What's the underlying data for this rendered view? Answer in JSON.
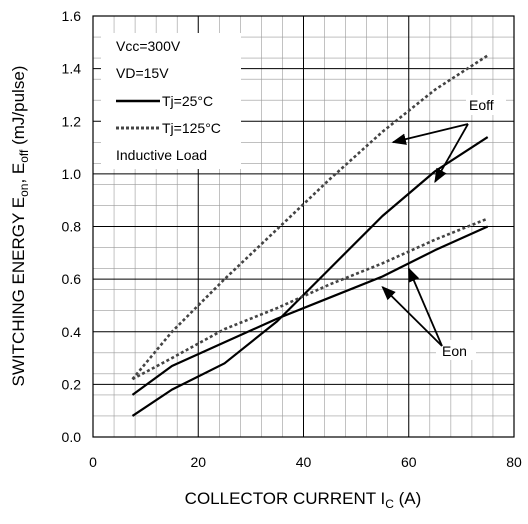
{
  "chart_data": {
    "type": "line",
    "xlabel": {
      "main": "COLLECTOR CURRENT I",
      "sub": "C",
      "tail": " (A)"
    },
    "ylabel": {
      "p1": "SWITCHING ENERGY E",
      "s1": "on",
      "p2": ", E",
      "s2": "off",
      "p3": " (mJ/pulse)"
    },
    "xlim": [
      0,
      80
    ],
    "ylim": [
      0,
      1.6
    ],
    "x_ticks": [
      0,
      20,
      40,
      60,
      80
    ],
    "y_ticks": [
      0.0,
      0.2,
      0.4,
      0.6,
      0.8,
      1.0,
      1.2,
      1.4,
      1.6
    ],
    "x_tick_labels": [
      "0",
      "20",
      "40",
      "60",
      "80"
    ],
    "y_tick_labels": [
      "0.0",
      "0.2",
      "0.4",
      "0.6",
      "0.8",
      "1.0",
      "1.2",
      "1.4",
      "1.6"
    ],
    "grid": true,
    "conditions": [
      "Vcc=300V",
      "VD=15V"
    ],
    "legend_note": "Inductive Load",
    "series": [
      {
        "name": "Tj=25°C",
        "quantity": "Eoff",
        "style": "solid",
        "color": "#000000",
        "x": [
          7.5,
          15,
          25,
          35,
          45,
          55,
          65,
          75
        ],
        "y": [
          0.08,
          0.18,
          0.28,
          0.44,
          0.64,
          0.84,
          1.01,
          1.14
        ]
      },
      {
        "name": "Tj=25°C",
        "quantity": "Eon",
        "style": "solid",
        "color": "#000000",
        "x": [
          7.5,
          15,
          25,
          35,
          45,
          55,
          65,
          75
        ],
        "y": [
          0.16,
          0.27,
          0.36,
          0.45,
          0.53,
          0.61,
          0.71,
          0.8
        ]
      },
      {
        "name": "Tj=125°C",
        "quantity": "Eoff",
        "style": "dotted",
        "color": "#444444",
        "x": [
          7.5,
          15,
          25,
          35,
          45,
          55,
          65,
          75
        ],
        "y": [
          0.22,
          0.4,
          0.6,
          0.79,
          0.98,
          1.16,
          1.32,
          1.45
        ]
      },
      {
        "name": "Tj=125°C",
        "quantity": "Eon",
        "style": "dotted",
        "color": "#444444",
        "x": [
          7.5,
          15,
          25,
          35,
          45,
          55,
          65,
          75
        ],
        "y": [
          0.22,
          0.3,
          0.41,
          0.49,
          0.58,
          0.66,
          0.75,
          0.83
        ]
      }
    ],
    "annotations": [
      {
        "text": "Eoff",
        "points_at": [
          [
            57,
            1.12
          ],
          [
            65,
            0.97
          ]
        ]
      },
      {
        "text": "Eon",
        "points_at": [
          [
            55,
            0.57
          ],
          [
            60,
            0.64
          ]
        ]
      }
    ]
  }
}
